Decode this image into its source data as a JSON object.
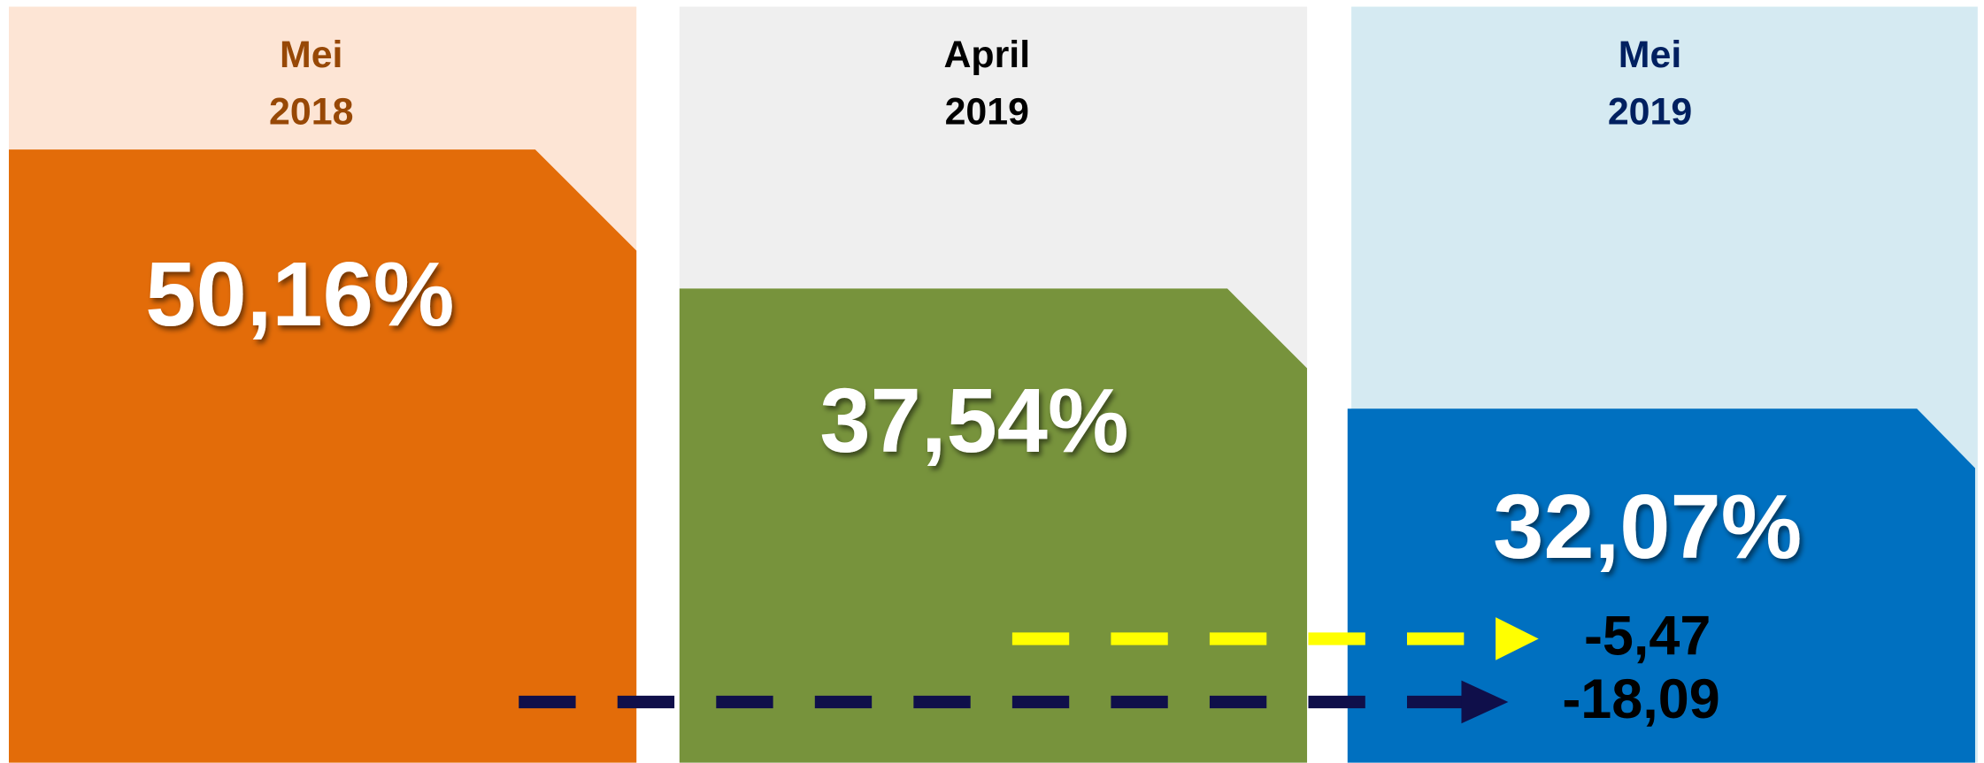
{
  "panels": [
    {
      "month": "Mei",
      "year": "2018",
      "value": "50,16%"
    },
    {
      "month": "April",
      "year": "2019",
      "value": "37,54%"
    },
    {
      "month": "Mei",
      "year": "2019",
      "value": "32,07%"
    }
  ],
  "changes": [
    "-5,47",
    "-18,09"
  ]
}
